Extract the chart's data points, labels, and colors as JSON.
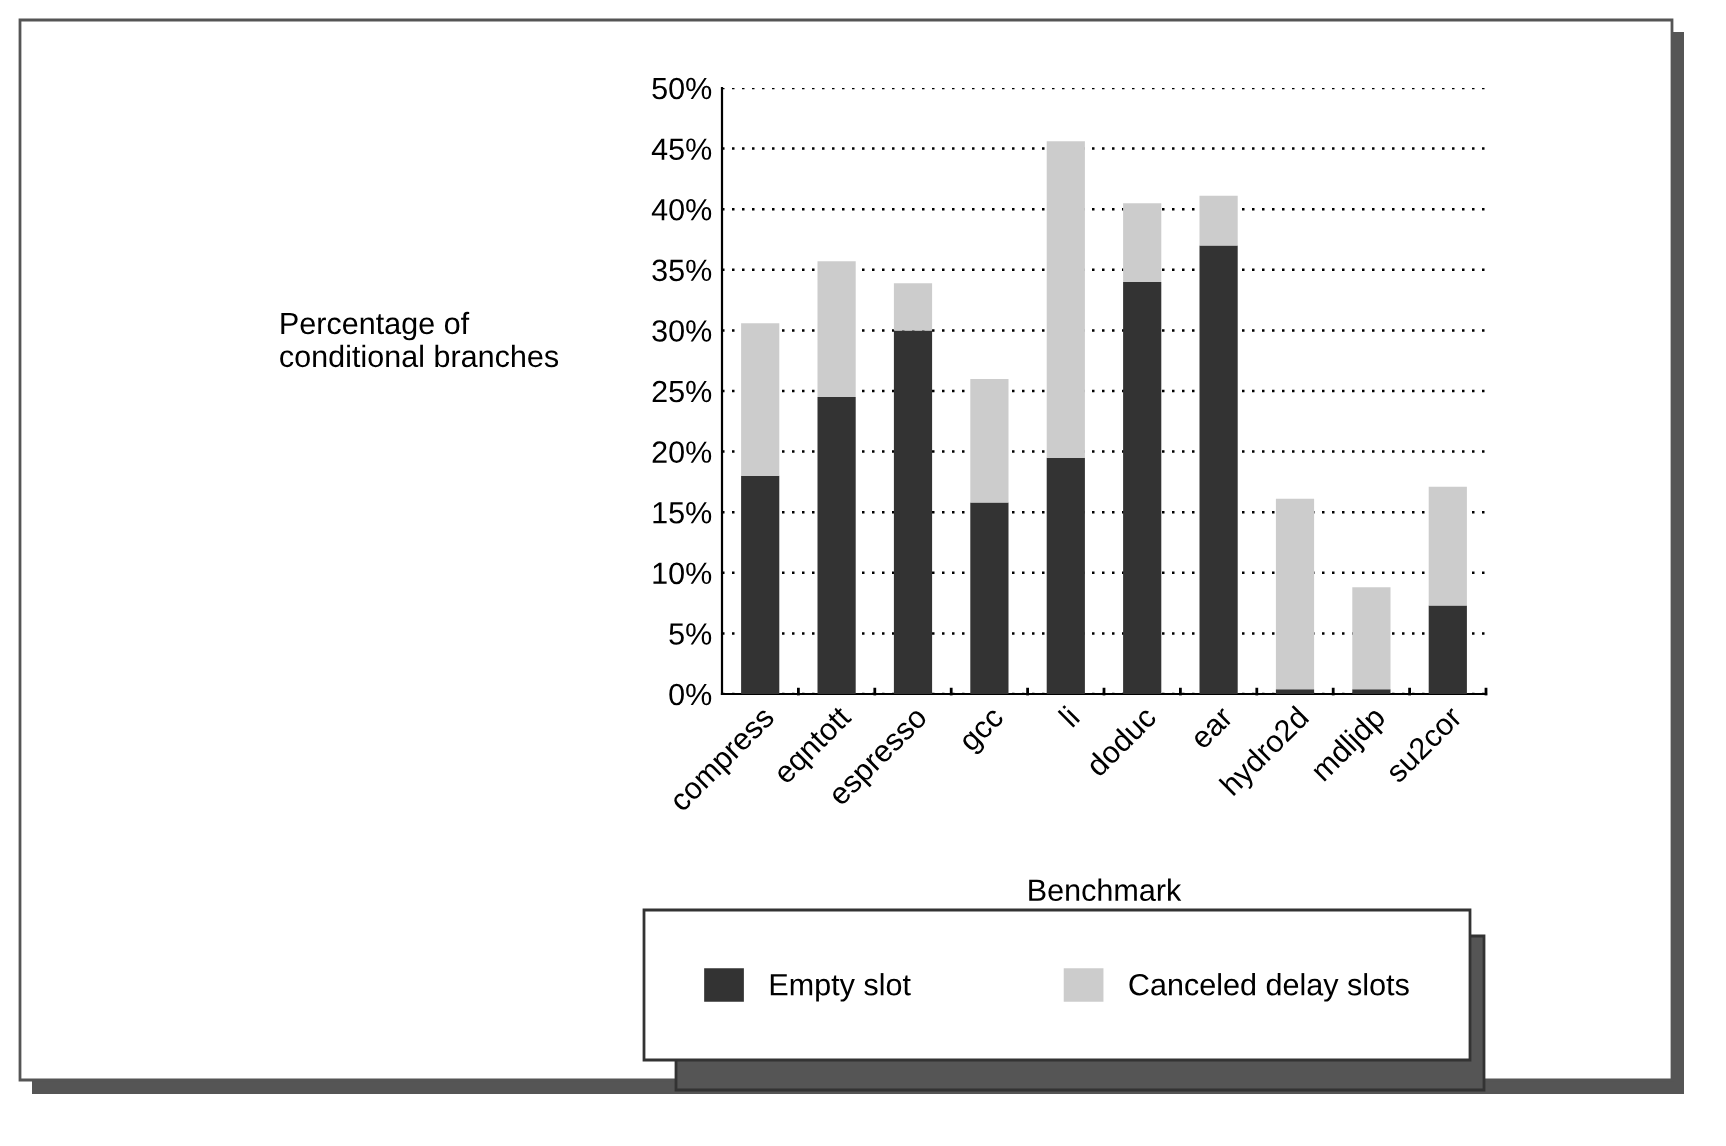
{
  "chart_data": {
    "type": "bar",
    "stacked": true,
    "xlabel": "Benchmark",
    "ylabel": "Percentage of\nconditional branches",
    "categories": [
      "compress",
      "eqntott",
      "espresso",
      "gcc",
      "li",
      "doduc",
      "ear",
      "hydro2d",
      "mdljdp",
      "su2cor"
    ],
    "series": [
      {
        "name": "Empty slot",
        "color": "#333333",
        "values": [
          18,
          24.5,
          30,
          15.8,
          19.5,
          34,
          37,
          0.4,
          0.4,
          7.3
        ]
      },
      {
        "name": "Canceled delay slots",
        "color": "#cccccc",
        "values": [
          12.6,
          11.2,
          3.9,
          10.2,
          26.1,
          6.5,
          4.1,
          15.7,
          8.4,
          9.8
        ]
      }
    ],
    "ylim": [
      0,
      50
    ],
    "yticks": [
      {
        "value": 0,
        "label": "0%"
      },
      {
        "value": 5,
        "label": "5%"
      },
      {
        "value": 10,
        "label": "10%"
      },
      {
        "value": 15,
        "label": "15%"
      },
      {
        "value": 20,
        "label": "20%"
      },
      {
        "value": 25,
        "label": "25%"
      },
      {
        "value": 30,
        "label": "30%"
      },
      {
        "value": 35,
        "label": "35%"
      },
      {
        "value": 40,
        "label": "40%"
      },
      {
        "value": 45,
        "label": "45%"
      },
      {
        "value": 50,
        "label": "50%"
      }
    ],
    "grid": "y",
    "legend": "bottom"
  }
}
